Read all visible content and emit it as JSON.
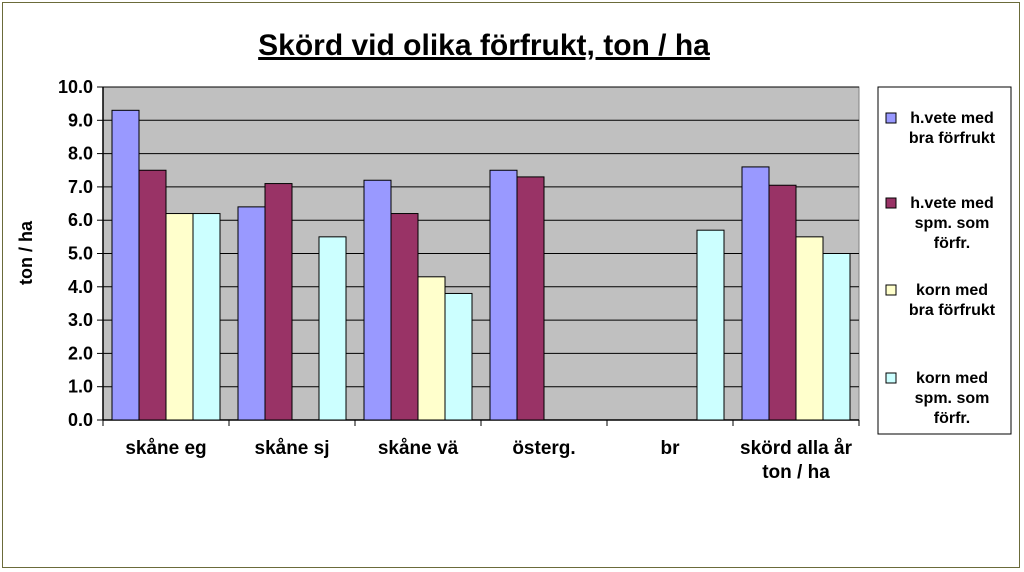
{
  "chart_data": {
    "type": "bar",
    "title": "Skörd vid olika förfrukt, ton / ha",
    "xlabel": "",
    "ylabel": "ton / ha",
    "ylim": [
      0,
      10
    ],
    "yticks": [
      "0.0",
      "1.0",
      "2.0",
      "3.0",
      "4.0",
      "5.0",
      "6.0",
      "7.0",
      "8.0",
      "9.0",
      "10.0"
    ],
    "grid": "horizontal",
    "legend_position": "right",
    "categories": [
      [
        "skåne eg"
      ],
      [
        "skåne sj"
      ],
      [
        "skåne vä"
      ],
      [
        "österg."
      ],
      [
        "br"
      ],
      [
        "skörd alla år",
        "ton / ha"
      ]
    ],
    "series": [
      {
        "name": [
          "h.vete med",
          "bra förfrukt"
        ],
        "color": "#9999ff",
        "values": [
          9.3,
          6.4,
          7.2,
          7.5,
          null,
          7.6
        ]
      },
      {
        "name": [
          "h.vete med",
          "spm. som",
          "förfr."
        ],
        "color": "#993366",
        "values": [
          7.5,
          7.1,
          6.2,
          7.3,
          null,
          7.05
        ]
      },
      {
        "name": [
          "korn med",
          "bra förfrukt"
        ],
        "color": "#ffffcc",
        "values": [
          6.2,
          null,
          4.3,
          null,
          null,
          5.5
        ]
      },
      {
        "name": [
          "korn med",
          "spm. som",
          "förfr."
        ],
        "color": "#ccffff",
        "values": [
          6.2,
          5.5,
          3.8,
          null,
          5.7,
          5.0
        ]
      }
    ],
    "plot_background": "#c0c0c0"
  }
}
